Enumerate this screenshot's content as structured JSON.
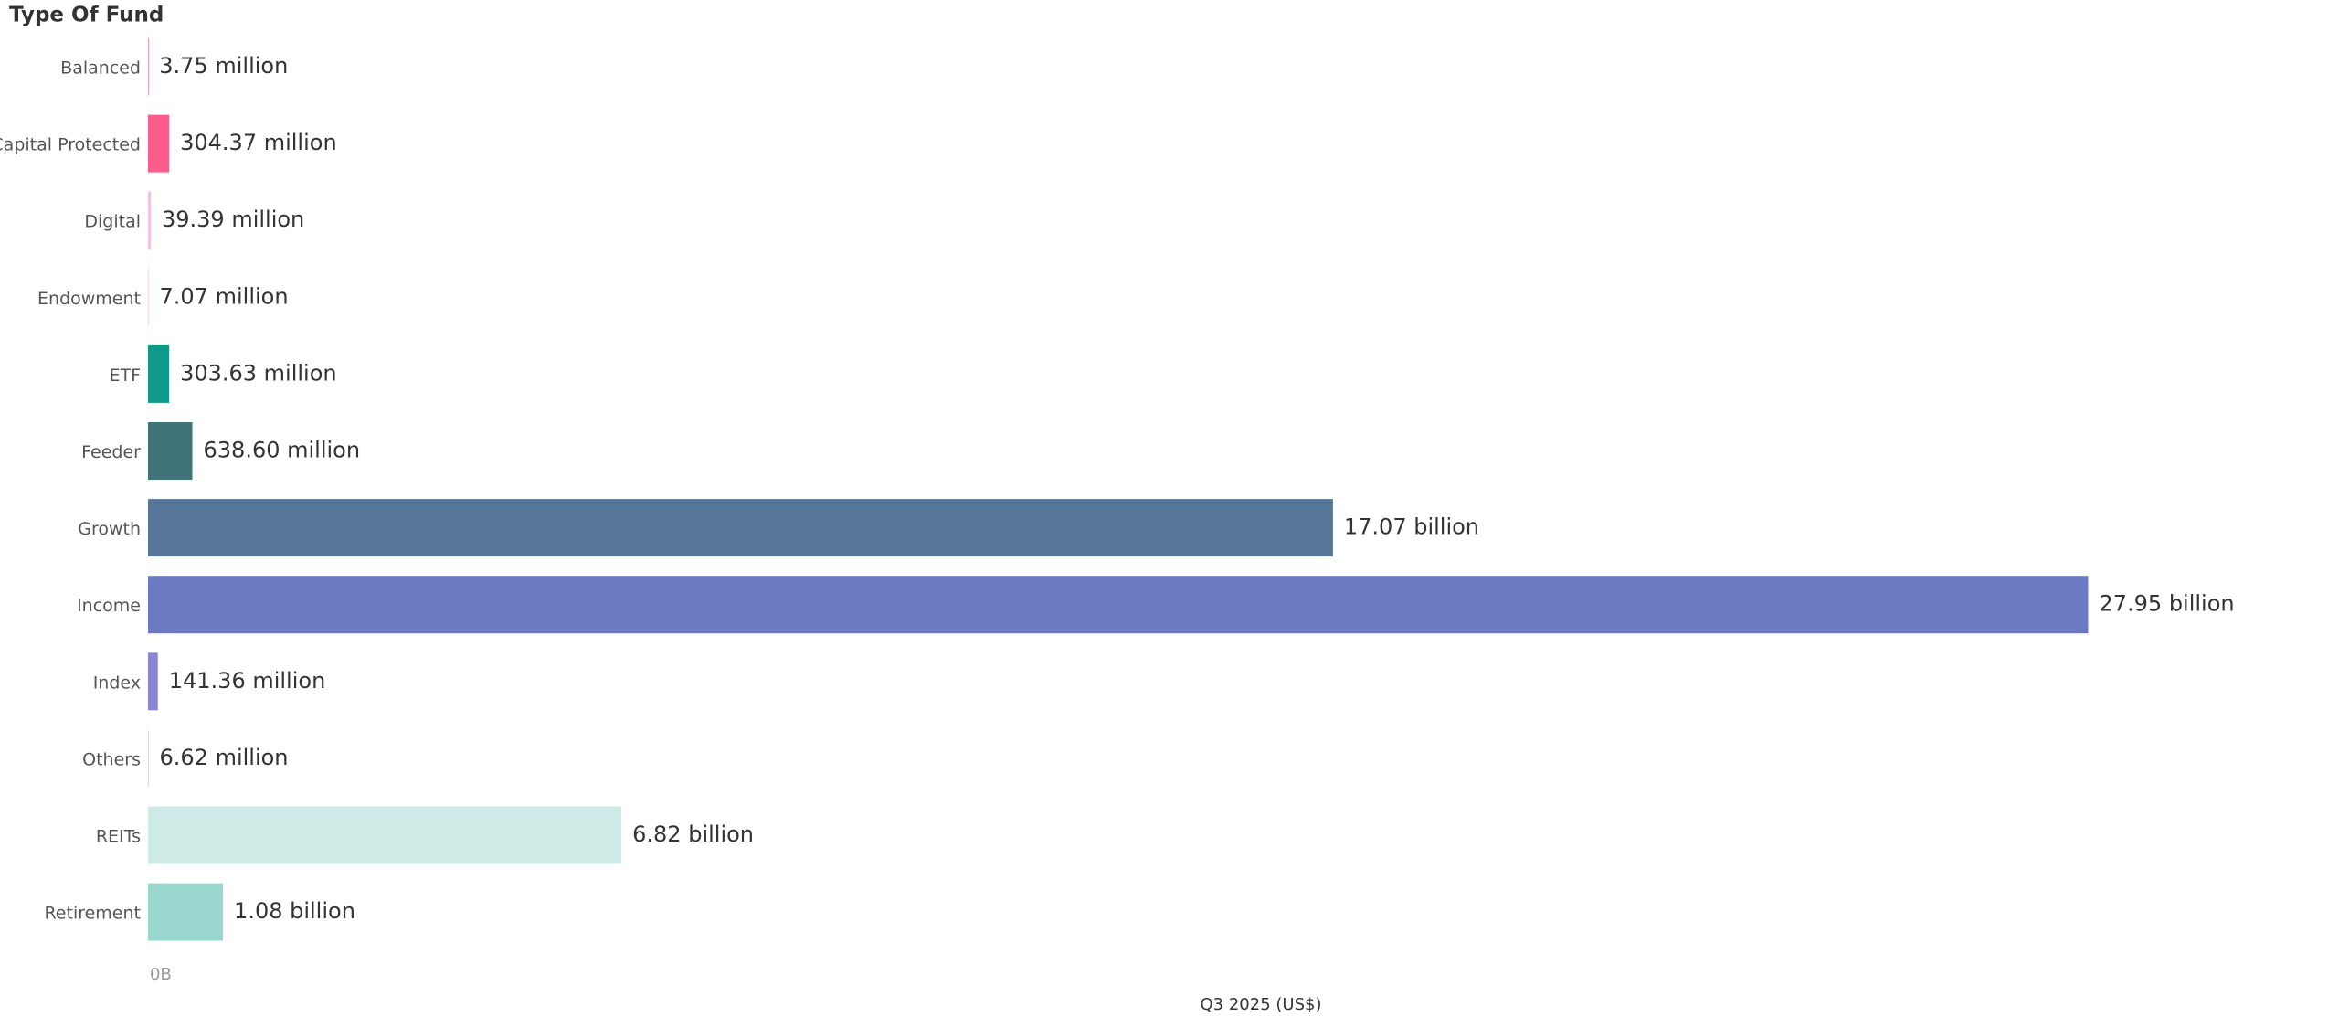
{
  "chart_data": {
    "type": "hbar",
    "y_header": "Type Of Fund",
    "xlabel": "Q3 2025 (US$)",
    "categories": [
      "Balanced",
      "Capital Protected",
      "Digital",
      "Endowment",
      "ETF",
      "Feeder",
      "Growth",
      "Income",
      "Index",
      "Others",
      "REITs",
      "Retirement"
    ],
    "values": [
      3750000,
      304370000,
      39390000,
      7070000,
      303630000,
      638600000,
      17070000000,
      27950000000,
      141360000,
      6620000,
      6820000000,
      1080000000
    ],
    "value_labels": [
      "3.75 million",
      "304.37 million",
      "39.39 million",
      "7.07 million",
      "303.63 million",
      "638.60 million",
      "17.07 billion",
      "27.95 billion",
      "141.36 million",
      "6.62 million",
      "6.82 billion",
      "1.08 billion"
    ],
    "colors": [
      "#ff3377",
      "#ff5c8e",
      "#f7c2df",
      "#f2bcd9",
      "#0e9a8a",
      "#3f7479",
      "#57779a",
      "#6b79c2",
      "#8a86d6",
      "#b4b4c8",
      "#cdeae7",
      "#9ad8cf"
    ],
    "xlim": [
      0,
      31300000000
    ],
    "xticks": [
      {
        "value": 0,
        "label": "0B"
      }
    ]
  }
}
